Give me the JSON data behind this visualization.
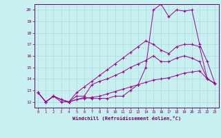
{
  "xlabel": "Windchill (Refroidissement éolien,°C)",
  "bg_color": "#c8f0f0",
  "line_color": "#990099",
  "grid_color": "#aadddd",
  "axis_color": "#660066",
  "series1": [
    12.8,
    12.0,
    12.5,
    12.0,
    12.0,
    12.2,
    12.4,
    12.3,
    12.3,
    12.3,
    12.5,
    12.5,
    13.0,
    13.5,
    15.0,
    20.0,
    20.5,
    19.4,
    20.0,
    19.9,
    20.0,
    17.0,
    15.5,
    13.6
  ],
  "series2": [
    12.8,
    12.0,
    12.5,
    12.2,
    12.0,
    12.8,
    13.3,
    13.8,
    14.3,
    14.8,
    15.3,
    15.8,
    16.3,
    16.8,
    17.3,
    17.0,
    16.5,
    16.2,
    16.8,
    17.0,
    17.0,
    16.8,
    14.0,
    13.6
  ],
  "series3": [
    12.8,
    12.0,
    12.5,
    12.2,
    12.0,
    12.5,
    12.5,
    13.5,
    13.8,
    14.0,
    14.3,
    14.6,
    15.0,
    15.3,
    15.6,
    16.0,
    15.5,
    15.5,
    15.8,
    16.0,
    15.8,
    15.5,
    14.0,
    13.6
  ],
  "series4": [
    12.8,
    12.0,
    12.5,
    12.2,
    12.0,
    12.2,
    12.3,
    12.4,
    12.5,
    12.7,
    12.9,
    13.1,
    13.3,
    13.5,
    13.7,
    13.9,
    14.0,
    14.1,
    14.3,
    14.5,
    14.6,
    14.7,
    14.0,
    13.6
  ],
  "xmin": 0,
  "xmax": 23,
  "ymin": 12,
  "ymax": 20,
  "yticks": [
    12,
    13,
    14,
    15,
    16,
    17,
    18,
    19,
    20
  ],
  "xticks": [
    0,
    1,
    2,
    3,
    4,
    5,
    6,
    7,
    8,
    9,
    10,
    11,
    12,
    13,
    14,
    15,
    16,
    17,
    18,
    19,
    20,
    21,
    22,
    23
  ]
}
